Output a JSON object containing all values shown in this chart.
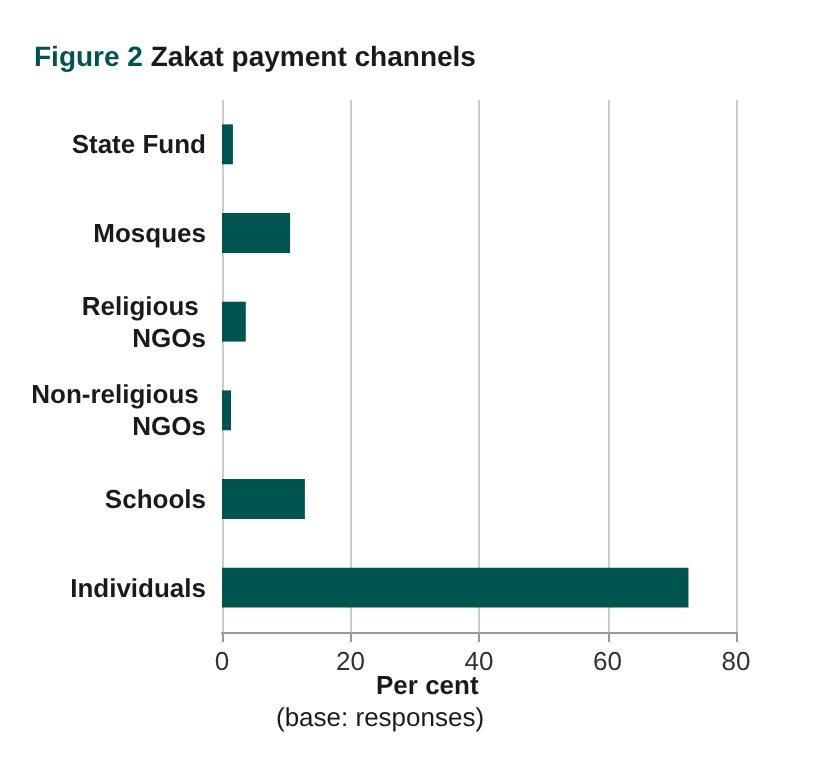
{
  "chart_data": {
    "type": "bar",
    "orientation": "horizontal",
    "title": "Figure 2 Zakat payment channels",
    "xlabel": "Per cent",
    "annotations": [
      "(base: responses)"
    ],
    "categories": [
      "State Fund",
      "Mosques",
      "Religious NGOs",
      "Non-religious NGOs",
      "Schools",
      "Individuals"
    ],
    "values": [
      1.7,
      10.6,
      3.7,
      1.4,
      12.9,
      72.6
    ],
    "color": "#005450",
    "xlim": [
      0,
      80
    ],
    "xticks": [
      0,
      20,
      40,
      60,
      80
    ],
    "grid": "x"
  }
}
